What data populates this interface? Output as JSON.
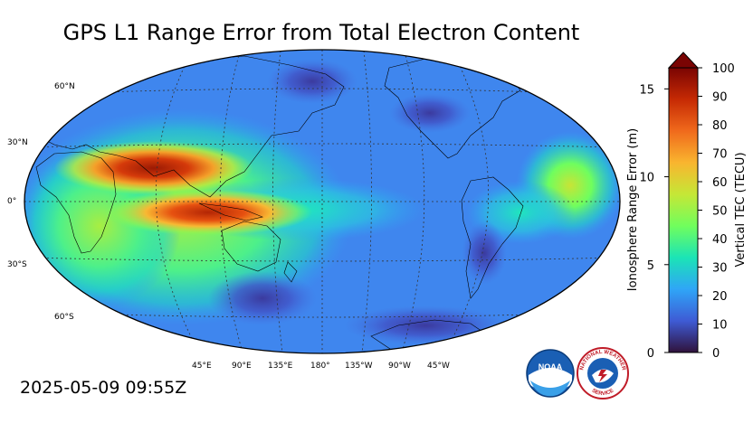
{
  "title": "GPS L1 Range Error from Total Electron Content",
  "timestamp": "2025-05-09 09:55Z",
  "map": {
    "lat_labels": [
      "60°N",
      "30°N",
      "0°",
      "30°S",
      "60°S"
    ],
    "lon_labels": [
      "45°E",
      "90°E",
      "135°E",
      "180°",
      "135°W",
      "90°W",
      "45°W"
    ]
  },
  "colorbar": {
    "left_axis_label": "Ionosphere Range Error (m)",
    "right_axis_label": "Vertical TEC (TECU)",
    "left_ticks": [
      "0",
      "5",
      "10",
      "15"
    ],
    "right_ticks": [
      "0",
      "10",
      "20",
      "30",
      "40",
      "50",
      "60",
      "70",
      "80",
      "90",
      "100"
    ],
    "tec_range": [
      0,
      100
    ],
    "range_error_range": [
      0,
      16.2
    ],
    "extend": "max",
    "colors": [
      "#30123b",
      "#3e5bd5",
      "#2fa5f7",
      "#1be4b6",
      "#70fe5d",
      "#c5e736",
      "#f9b52f",
      "#f06a1c",
      "#c62a04",
      "#7a0403"
    ]
  },
  "logos": {
    "noaa": "NOAA",
    "nws_top": "NATIONAL WEATHER",
    "nws_bottom": "SERVICE"
  }
}
